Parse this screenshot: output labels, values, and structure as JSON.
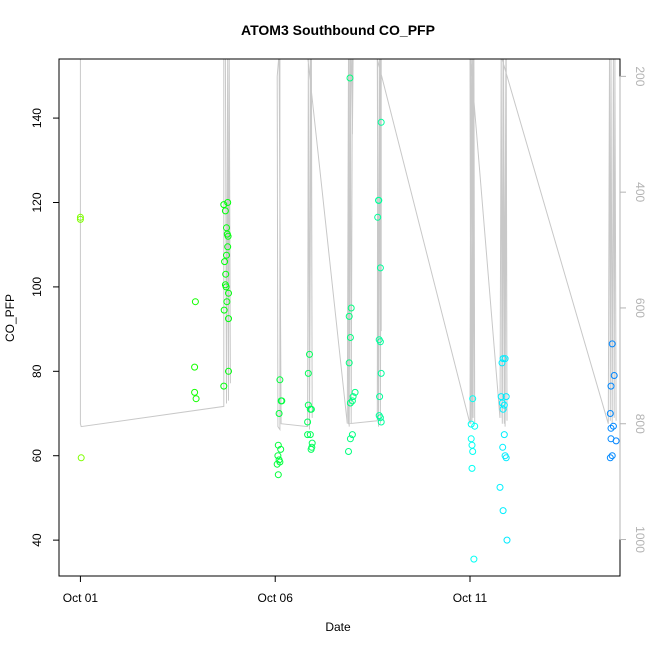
{
  "chart_data": {
    "type": "scatter",
    "title": "ATOM3 Southbound CO_PFP",
    "xlabel": "Date",
    "ylabel": "CO_PFP",
    "x_unit": "days since Oct 01",
    "xlim": [
      -0.55,
      13.85
    ],
    "ylim": [
      31.5,
      154
    ],
    "x_ticks": [
      {
        "value": 0,
        "label": "Oct 01"
      },
      {
        "value": 5,
        "label": "Oct 06"
      },
      {
        "value": 10,
        "label": "Oct 11"
      }
    ],
    "y_ticks": [
      40,
      60,
      80,
      100,
      120,
      140
    ],
    "right_axis": {
      "label": "",
      "reversed": true,
      "range": [
        1063,
        170
      ],
      "ticks": [
        200,
        400,
        600,
        800,
        1000
      ],
      "color": "#b3b3b3"
    },
    "grid": false,
    "legend": "none",
    "point_color_scale": [
      "#7fff00",
      "#00ff00",
      "#00ff7f",
      "#00ffff",
      "#0080ff"
    ],
    "points": [
      {
        "x": 0.0,
        "y": 116.5
      },
      {
        "x": 0.0,
        "y": 116.0
      },
      {
        "x": 0.02,
        "y": 59.5
      },
      {
        "x": 2.95,
        "y": 96.5
      },
      {
        "x": 2.93,
        "y": 81.0
      },
      {
        "x": 2.93,
        "y": 75.0
      },
      {
        "x": 2.97,
        "y": 73.5
      },
      {
        "x": 3.68,
        "y": 119.5
      },
      {
        "x": 3.78,
        "y": 120.0
      },
      {
        "x": 3.72,
        "y": 118.0
      },
      {
        "x": 3.75,
        "y": 114.0
      },
      {
        "x": 3.77,
        "y": 112.5
      },
      {
        "x": 3.79,
        "y": 112.0
      },
      {
        "x": 3.78,
        "y": 109.5
      },
      {
        "x": 3.75,
        "y": 107.5
      },
      {
        "x": 3.7,
        "y": 106.0
      },
      {
        "x": 3.73,
        "y": 103.0
      },
      {
        "x": 3.72,
        "y": 100.5
      },
      {
        "x": 3.74,
        "y": 100.0
      },
      {
        "x": 3.8,
        "y": 98.5
      },
      {
        "x": 3.76,
        "y": 96.5
      },
      {
        "x": 3.69,
        "y": 94.5
      },
      {
        "x": 3.8,
        "y": 92.5
      },
      {
        "x": 3.8,
        "y": 80.0
      },
      {
        "x": 3.68,
        "y": 76.5
      },
      {
        "x": 5.12,
        "y": 78.0
      },
      {
        "x": 5.15,
        "y": 73.0
      },
      {
        "x": 5.17,
        "y": 73.0
      },
      {
        "x": 5.1,
        "y": 70.0
      },
      {
        "x": 5.08,
        "y": 62.5
      },
      {
        "x": 5.14,
        "y": 61.5
      },
      {
        "x": 5.07,
        "y": 60.0
      },
      {
        "x": 5.1,
        "y": 59.0
      },
      {
        "x": 5.05,
        "y": 58.0
      },
      {
        "x": 5.12,
        "y": 58.5
      },
      {
        "x": 5.08,
        "y": 55.5
      },
      {
        "x": 5.88,
        "y": 84.0
      },
      {
        "x": 5.85,
        "y": 79.5
      },
      {
        "x": 5.85,
        "y": 72.0
      },
      {
        "x": 5.9,
        "y": 71.0
      },
      {
        "x": 5.93,
        "y": 71.0
      },
      {
        "x": 5.83,
        "y": 68.0
      },
      {
        "x": 5.83,
        "y": 65.0
      },
      {
        "x": 5.9,
        "y": 65.0
      },
      {
        "x": 5.95,
        "y": 63.0
      },
      {
        "x": 5.94,
        "y": 62.0
      },
      {
        "x": 5.92,
        "y": 61.5
      },
      {
        "x": 6.92,
        "y": 149.5
      },
      {
        "x": 6.95,
        "y": 95.0
      },
      {
        "x": 6.9,
        "y": 93.0
      },
      {
        "x": 6.93,
        "y": 88.0
      },
      {
        "x": 6.9,
        "y": 82.0
      },
      {
        "x": 7.05,
        "y": 75.0
      },
      {
        "x": 7.0,
        "y": 74.0
      },
      {
        "x": 6.98,
        "y": 73.0
      },
      {
        "x": 6.93,
        "y": 72.5
      },
      {
        "x": 6.98,
        "y": 65.0
      },
      {
        "x": 6.93,
        "y": 64.0
      },
      {
        "x": 6.88,
        "y": 61.0
      },
      {
        "x": 7.72,
        "y": 139.0
      },
      {
        "x": 7.65,
        "y": 120.5
      },
      {
        "x": 7.66,
        "y": 120.5
      },
      {
        "x": 7.63,
        "y": 116.5
      },
      {
        "x": 7.7,
        "y": 104.5
      },
      {
        "x": 7.67,
        "y": 87.5
      },
      {
        "x": 7.7,
        "y": 87.0
      },
      {
        "x": 7.72,
        "y": 79.5
      },
      {
        "x": 7.68,
        "y": 74.0
      },
      {
        "x": 7.67,
        "y": 69.5
      },
      {
        "x": 7.7,
        "y": 69.0
      },
      {
        "x": 7.72,
        "y": 68.0
      },
      {
        "x": 10.07,
        "y": 73.5
      },
      {
        "x": 10.03,
        "y": 67.5
      },
      {
        "x": 10.12,
        "y": 67.0
      },
      {
        "x": 10.03,
        "y": 64.0
      },
      {
        "x": 10.05,
        "y": 62.5
      },
      {
        "x": 10.07,
        "y": 61.0
      },
      {
        "x": 10.05,
        "y": 57.0
      },
      {
        "x": 10.1,
        "y": 35.5
      },
      {
        "x": 10.85,
        "y": 83.0
      },
      {
        "x": 10.9,
        "y": 83.0
      },
      {
        "x": 10.82,
        "y": 82.0
      },
      {
        "x": 10.8,
        "y": 74.0
      },
      {
        "x": 10.93,
        "y": 74.0
      },
      {
        "x": 10.83,
        "y": 72.5
      },
      {
        "x": 10.88,
        "y": 72.0
      },
      {
        "x": 10.85,
        "y": 71.0
      },
      {
        "x": 10.88,
        "y": 65.0
      },
      {
        "x": 10.84,
        "y": 62.0
      },
      {
        "x": 10.9,
        "y": 60.0
      },
      {
        "x": 10.93,
        "y": 59.5
      },
      {
        "x": 10.77,
        "y": 52.5
      },
      {
        "x": 10.85,
        "y": 47.0
      },
      {
        "x": 10.95,
        "y": 40.0
      },
      {
        "x": 13.65,
        "y": 86.5
      },
      {
        "x": 13.7,
        "y": 79.0
      },
      {
        "x": 13.62,
        "y": 76.5
      },
      {
        "x": 13.6,
        "y": 70.0
      },
      {
        "x": 13.68,
        "y": 67.0
      },
      {
        "x": 13.62,
        "y": 66.5
      },
      {
        "x": 13.75,
        "y": 63.5
      },
      {
        "x": 13.62,
        "y": 64.0
      },
      {
        "x": 13.65,
        "y": 60.0
      },
      {
        "x": 13.6,
        "y": 59.5
      }
    ],
    "flight_path": {
      "color": "#c8c8c8",
      "axis": "right",
      "x": [
        0.0,
        0.0,
        0.02,
        3.68,
        3.68,
        3.72,
        3.75,
        3.78,
        3.8,
        3.82,
        3.85,
        3.82,
        3.8,
        3.78,
        3.75,
        3.72,
        3.7,
        5.12,
        5.12,
        5.07,
        5.05,
        5.1,
        5.15,
        5.83,
        5.85,
        5.88,
        5.92,
        5.95,
        5.93,
        5.9,
        5.88,
        5.85,
        5.83,
        6.85,
        6.88,
        6.9,
        6.93,
        6.95,
        6.98,
        7.0,
        6.98,
        6.95,
        6.92,
        6.9,
        6.88,
        7.62,
        7.63,
        7.65,
        7.68,
        7.7,
        7.72,
        7.72,
        7.7,
        7.68,
        7.65,
        7.62,
        10.0,
        10.02,
        10.05,
        10.08,
        10.12,
        10.1,
        10.08,
        10.05,
        10.02,
        10.0,
        10.77,
        10.8,
        10.83,
        10.86,
        10.9,
        10.93,
        10.95,
        10.92,
        10.88,
        10.85,
        10.82,
        10.8,
        13.55,
        13.58,
        13.6,
        13.62,
        13.65,
        13.68,
        13.7,
        13.72,
        13.75
      ],
      "y": [
        170,
        800,
        805,
        770,
        165,
        170,
        760,
        165,
        760,
        165,
        730,
        170,
        755,
        165,
        765,
        170,
        160,
        160,
        810,
        805,
        200,
        160,
        800,
        805,
        190,
        810,
        160,
        790,
        165,
        160,
        805,
        170,
        165,
        800,
        160,
        805,
        165,
        800,
        160,
        170,
        300,
        165,
        160,
        165,
        800,
        795,
        160,
        790,
        165,
        800,
        160,
        640,
        165,
        160,
        805,
        170,
        800,
        165,
        795,
        160,
        800,
        160,
        790,
        165,
        800,
        160,
        790,
        160,
        800,
        165,
        805,
        160,
        795,
        165,
        800,
        160,
        790,
        165,
        800,
        160,
        795,
        165,
        800,
        160,
        790,
        170,
        795
      ]
    }
  }
}
